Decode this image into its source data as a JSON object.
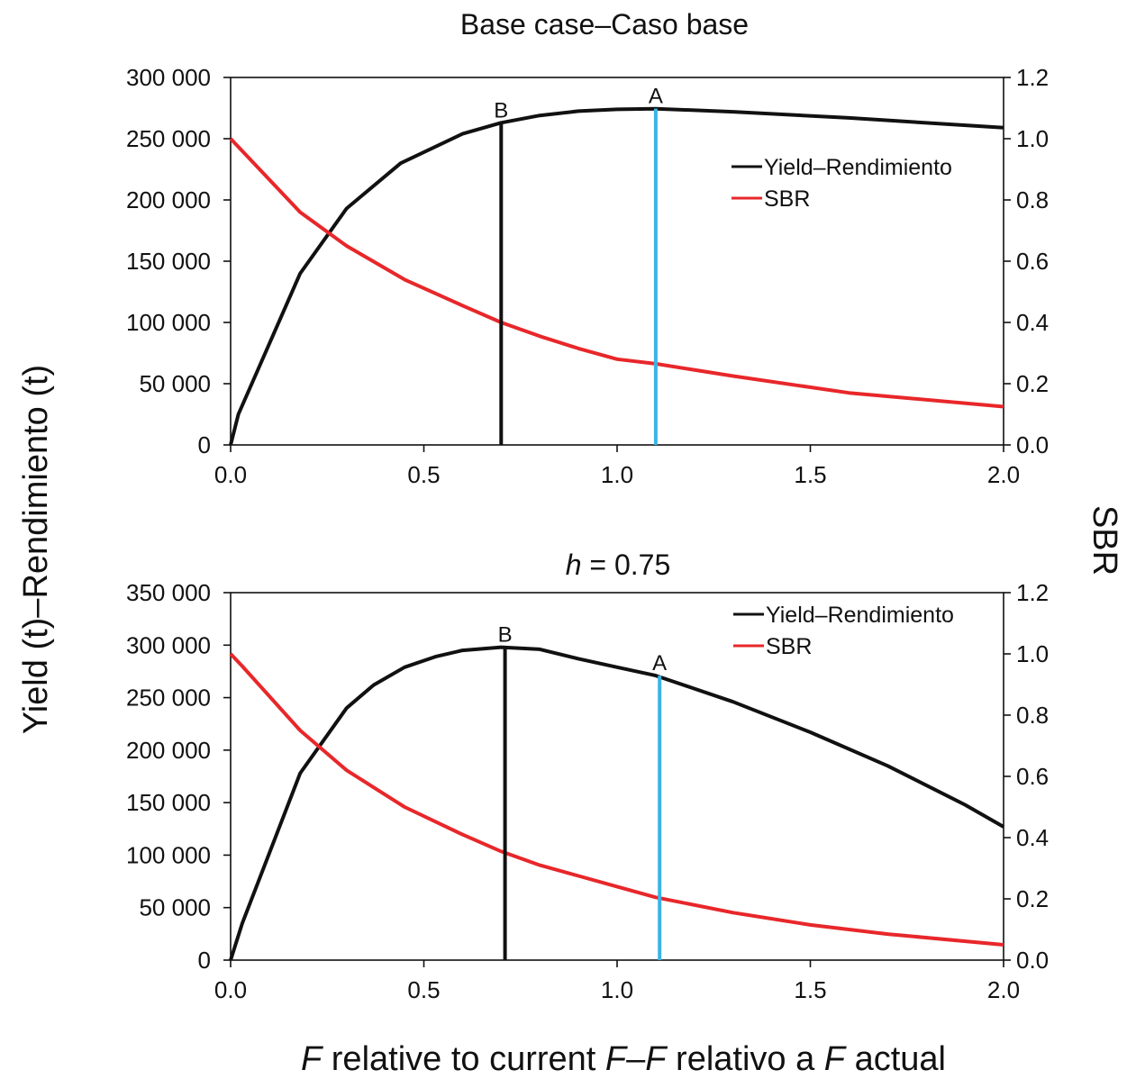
{
  "figure": {
    "ylabel_left": "Yield (t)–Rendimiento (t)",
    "ylabel_right": "SBR",
    "xlabel_parts": [
      "F",
      " relative to current ",
      "F",
      "–",
      "F",
      " relativo a ",
      "F",
      " actual"
    ]
  },
  "chart_data": [
    {
      "type": "line",
      "title": "Base case–Caso base",
      "xlim": [
        0,
        2.0
      ],
      "xticks": [
        "0.0",
        "0.5",
        "1.0",
        "1.5",
        "2.0"
      ],
      "ylim_left": [
        0,
        300000
      ],
      "yticks_left": [
        "0",
        "50 000",
        "100 000",
        "150 000",
        "200 000",
        "250 000",
        "300 000"
      ],
      "ylim_right": [
        0,
        1.2
      ],
      "yticks_right": [
        "0.0",
        "0.2",
        "0.4",
        "0.6",
        "0.8",
        "1.0",
        "1.2"
      ],
      "legend_position": "upper-right",
      "series": [
        {
          "name": "Yield–Rendimiento",
          "axis": "left",
          "color": "#111111",
          "x": [
            0,
            0.02,
            0.18,
            0.3,
            0.44,
            0.6,
            0.7,
            0.8,
            0.9,
            1.0,
            1.1,
            1.3,
            1.6,
            2.0
          ],
          "y": [
            0,
            25000,
            140000,
            193000,
            230000,
            254000,
            263000,
            269000,
            272500,
            274000,
            274500,
            272000,
            267000,
            259000
          ]
        },
        {
          "name": "SBR",
          "axis": "right",
          "color": "#e8272a",
          "x": [
            0,
            0.03,
            0.18,
            0.3,
            0.45,
            0.6,
            0.7,
            0.8,
            0.9,
            1.0,
            1.1,
            1.3,
            1.6,
            2.0
          ],
          "y": [
            1.0,
            0.96,
            0.76,
            0.65,
            0.54,
            0.455,
            0.4,
            0.355,
            0.315,
            0.28,
            0.265,
            0.225,
            0.17,
            0.125
          ]
        }
      ],
      "vlines": [
        {
          "label": "B",
          "x": 0.7,
          "y_top": 263000,
          "color": "#111111"
        },
        {
          "label": "A",
          "x": 1.1,
          "y_top": 274500,
          "color": "#3ab4e6"
        }
      ]
    },
    {
      "type": "line",
      "title_italic": "h",
      "title_rest": " = 0.75",
      "xlim": [
        0,
        2.0
      ],
      "xticks": [
        "0.0",
        "0.5",
        "1.0",
        "1.5",
        "2.0"
      ],
      "ylim_left": [
        0,
        350000
      ],
      "yticks_left": [
        "0",
        "50 000",
        "100 000",
        "150 000",
        "200 000",
        "250 000",
        "300 000",
        "350 000"
      ],
      "ylim_right": [
        0,
        1.2
      ],
      "yticks_right": [
        "0.0",
        "0.2",
        "0.4",
        "0.6",
        "0.8",
        "1.0",
        "1.2"
      ],
      "legend_position": "upper-right",
      "series": [
        {
          "name": "Yield–Rendimiento",
          "axis": "left",
          "color": "#111111",
          "x": [
            0,
            0.03,
            0.18,
            0.3,
            0.37,
            0.45,
            0.53,
            0.6,
            0.7,
            0.8,
            0.9,
            1.0,
            1.1,
            1.3,
            1.5,
            1.7,
            1.9,
            2.0
          ],
          "y": [
            0,
            35000,
            178000,
            240000,
            262000,
            279000,
            289000,
            295000,
            298000,
            296000,
            287000,
            279000,
            271000,
            246000,
            217000,
            185000,
            148000,
            127000
          ]
        },
        {
          "name": "SBR",
          "axis": "right",
          "color": "#e8272a",
          "x": [
            0,
            0.03,
            0.18,
            0.3,
            0.45,
            0.6,
            0.7,
            0.8,
            0.9,
            1.0,
            1.1,
            1.3,
            1.5,
            1.7,
            2.0
          ],
          "y": [
            1.0,
            0.96,
            0.75,
            0.62,
            0.5,
            0.41,
            0.355,
            0.31,
            0.275,
            0.24,
            0.205,
            0.155,
            0.115,
            0.085,
            0.05
          ]
        }
      ],
      "vlines": [
        {
          "label": "B",
          "x": 0.71,
          "y_top": 298000,
          "color": "#111111"
        },
        {
          "label": "A",
          "x": 1.11,
          "y_top": 271000,
          "color": "#3ab4e6"
        }
      ]
    }
  ]
}
